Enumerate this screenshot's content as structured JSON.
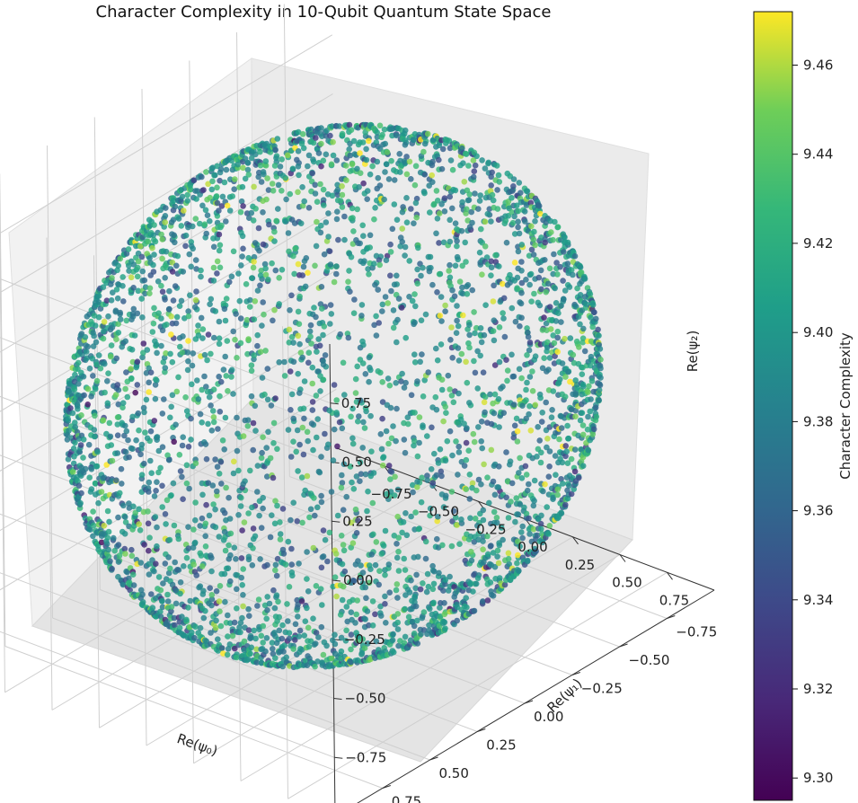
{
  "chart_data": {
    "type": "scatter",
    "subtype": "3d-scatter",
    "title": "Character Complexity in 10-Qubit Quantum State Space",
    "xlabel": "Re(ψ₀)",
    "ylabel": "Re(ψ₁)",
    "zlabel": "Re(ψ₂)",
    "xlim": [
      -1.0,
      1.0
    ],
    "ylim": [
      -1.0,
      1.0
    ],
    "zlim": [
      -1.0,
      1.0
    ],
    "x_ticks": [
      -0.75,
      -0.5,
      -0.25,
      0.0,
      0.25,
      0.5,
      0.75
    ],
    "y_ticks": [
      -0.75,
      -0.5,
      -0.25,
      0.0,
      0.25,
      0.5,
      0.75
    ],
    "z_ticks": [
      -0.75,
      -0.5,
      -0.25,
      0.0,
      0.25,
      0.5,
      0.75
    ],
    "x_tick_labels": [
      "−0.75",
      "−0.50",
      "−0.25",
      "0.00",
      "0.25",
      "0.50",
      "0.75"
    ],
    "y_tick_labels": [
      "−0.75",
      "−0.50",
      "−0.25",
      "0.00",
      "0.25",
      "0.50",
      "0.75"
    ],
    "z_tick_labels": [
      "−0.75",
      "−0.50",
      "−0.25",
      "0.00",
      "0.25",
      "0.50",
      "0.75"
    ],
    "shape": "points distributed on the surface of a unit sphere",
    "grid": true,
    "colorbar": {
      "label": "Character Complexity",
      "colormap": "viridis",
      "range": [
        9.295,
        9.472
      ],
      "ticks": [
        9.3,
        9.32,
        9.34,
        9.36,
        9.38,
        9.4,
        9.42,
        9.44,
        9.46
      ],
      "tick_labels": [
        "9.30",
        "9.32",
        "9.34",
        "9.36",
        "9.38",
        "9.40",
        "9.42",
        "9.44",
        "9.46"
      ]
    },
    "value_distribution": {
      "typical_range": [
        9.36,
        9.43
      ],
      "min": 9.295,
      "max": 9.472
    }
  }
}
